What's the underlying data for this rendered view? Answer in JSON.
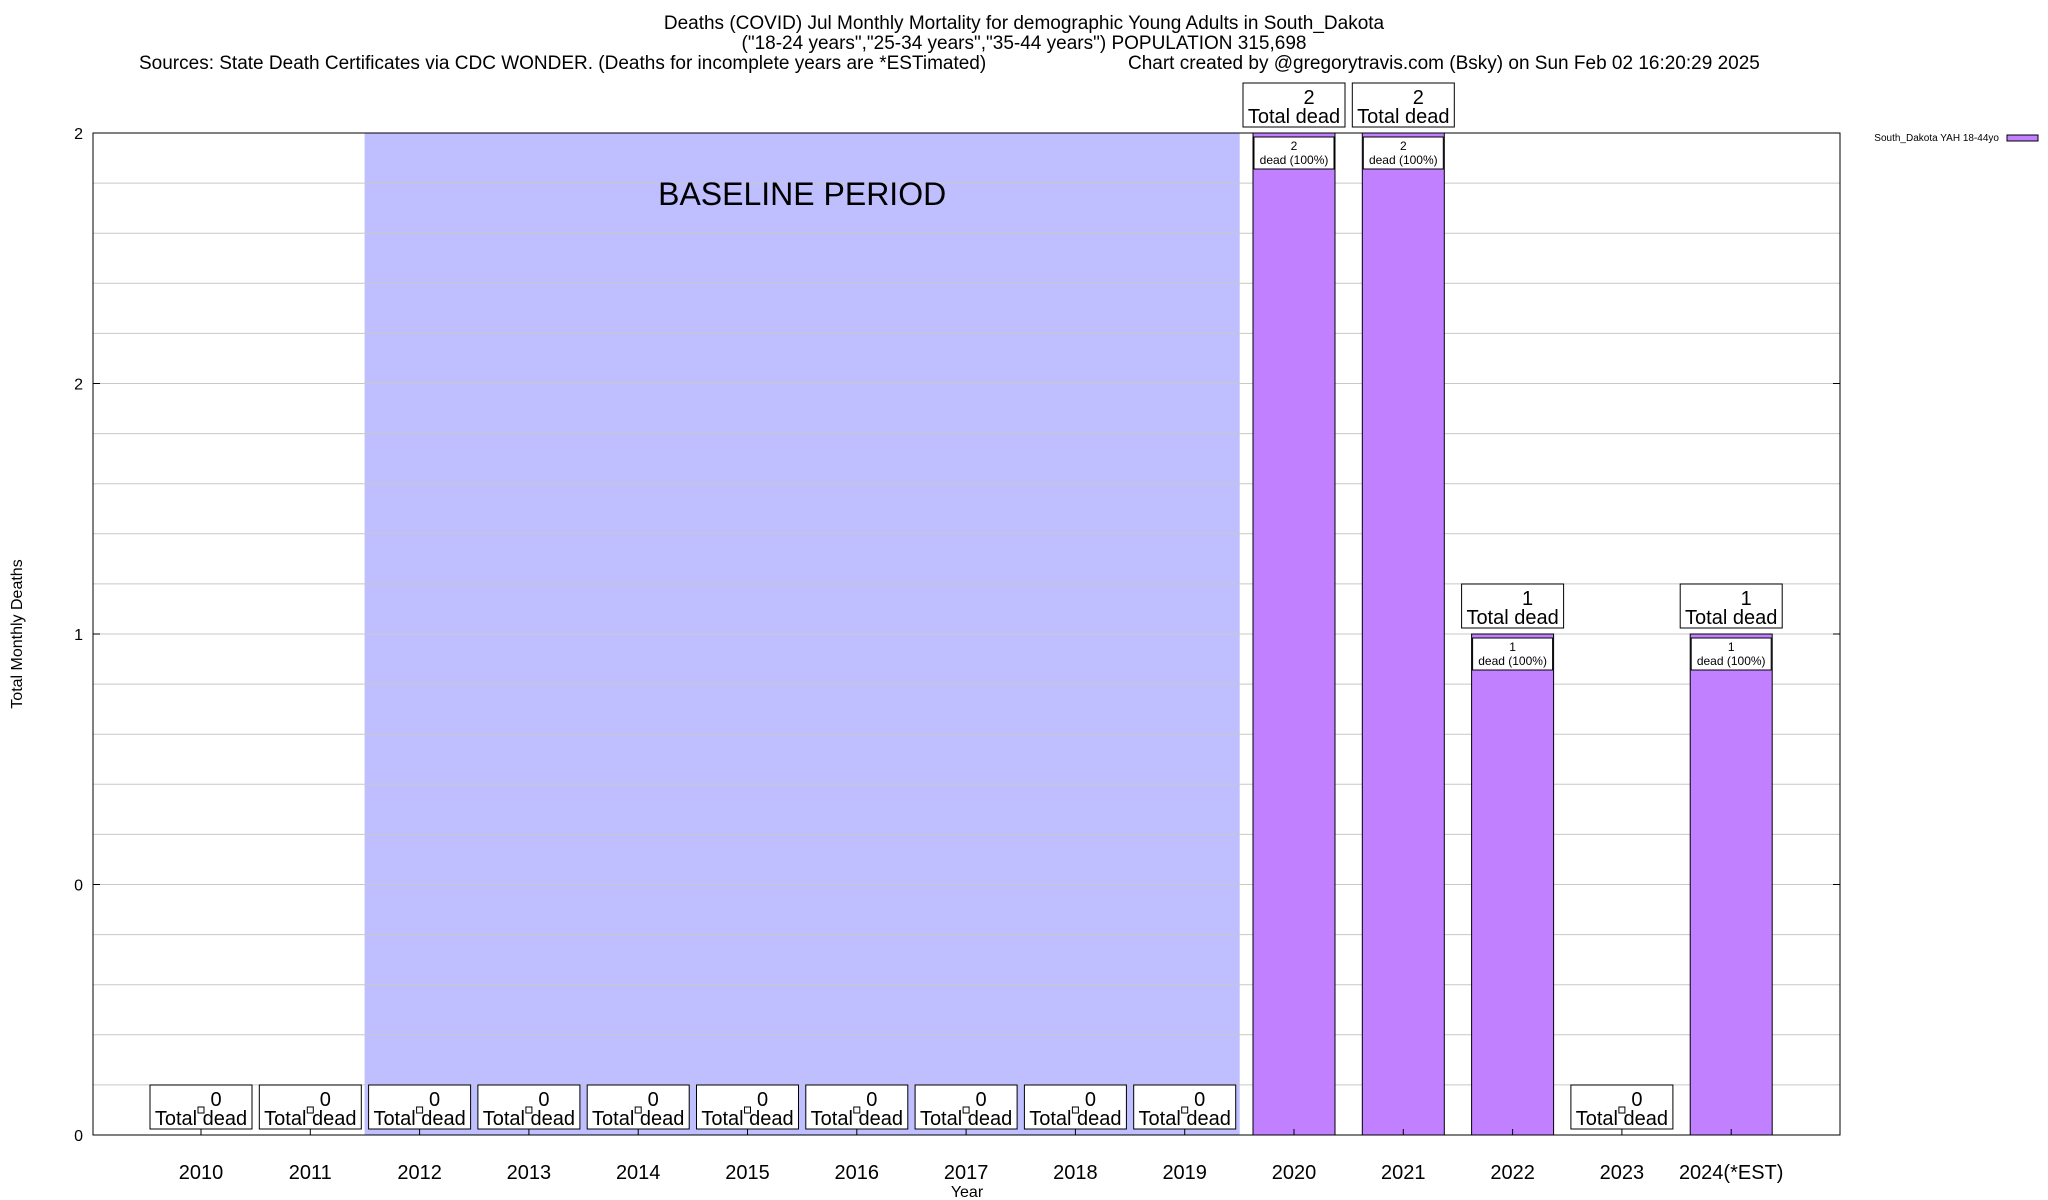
{
  "header": {
    "title_line1": "Deaths (COVID) Jul Monthly Mortality for demographic Young Adults in South_Dakota",
    "title_line2": "(\"18-24 years\",\"25-34 years\",\"35-44 years\") POPULATION 315,698",
    "sources": "Sources: State Death Certificates via CDC WONDER. (Deaths for incomplete years are *ESTimated)",
    "credit": "Chart created by @gregorytravis.com (Bsky) on Sun Feb 02 16:20:29 2025"
  },
  "chart_data": {
    "type": "bar",
    "title": "Deaths (COVID) Jul Monthly Mortality for demographic Young Adults in South_Dakota",
    "xlabel": "Year",
    "ylabel": "Total Monthly Deaths",
    "ylim": [
      0,
      2
    ],
    "ytick_labels": [
      "0",
      "0",
      "1",
      "2",
      "2"
    ],
    "grid": true,
    "legend_position": "top-right",
    "categories": [
      "2010",
      "2011",
      "2012",
      "2013",
      "2014",
      "2015",
      "2016",
      "2017",
      "2018",
      "2019",
      "2020",
      "2021",
      "2022",
      "2023",
      "2024(*EST)"
    ],
    "series": [
      {
        "name": "South_Dakota YAH 18-44yo",
        "color": "#c080ff",
        "values": [
          0,
          0,
          0,
          0,
          0,
          0,
          0,
          0,
          0,
          0,
          2,
          2,
          1,
          0,
          1
        ]
      }
    ],
    "total_label_suffix": "Total dead",
    "bar_label_suffix": "dead (100%)",
    "baseline": {
      "label": "BASELINE PERIOD",
      "from": "2012",
      "to": "2019",
      "color": "#bfbfff"
    }
  }
}
